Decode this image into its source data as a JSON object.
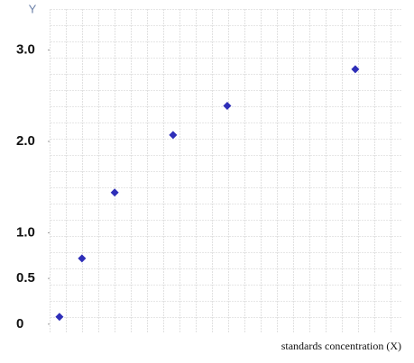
{
  "chart_data": {
    "type": "scatter",
    "y_label": "Y",
    "x_label": "standards concentration (X)",
    "x": [
      0.28,
      0.92,
      1.85,
      3.51,
      5.05,
      8.69
    ],
    "series": [
      {
        "color": "#2e2eb8",
        "values": [
          0.08,
          0.72,
          1.44,
          2.07,
          2.39,
          2.79
        ]
      }
    ],
    "xlim": [
      0,
      10
    ],
    "ylim": [
      -0.1,
      3.4
    ],
    "yticks": [
      0,
      0.5,
      {
        "value": 1,
        "label": "1.0"
      },
      {
        "value": 2,
        "label": "2.0"
      },
      {
        "value": 3,
        "label": "3.0"
      }
    ]
  }
}
